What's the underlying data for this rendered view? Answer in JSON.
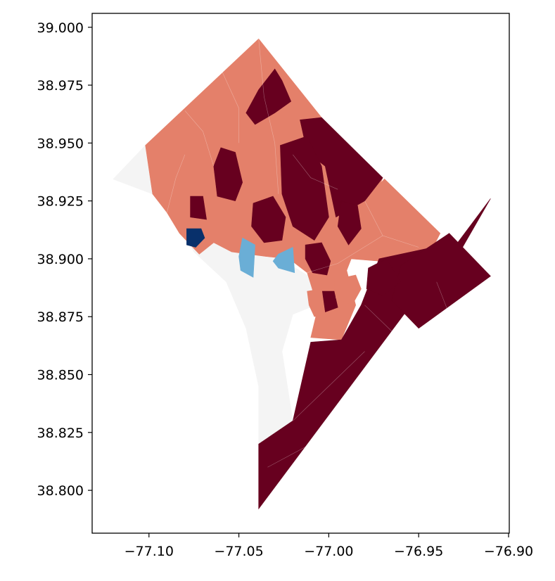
{
  "map": {
    "xaxis": {
      "range": [
        -77.1316,
        -76.8996
      ],
      "ticks": [
        -77.1,
        -77.05,
        -77.0,
        -76.95,
        -76.9
      ],
      "tick_labels": [
        "−77.10",
        "−77.05",
        "−77.00",
        "−76.95",
        "−76.90"
      ]
    },
    "yaxis": {
      "range": [
        38.7815,
        39.006
      ],
      "ticks": [
        38.8,
        38.825,
        38.85,
        38.875,
        38.9,
        38.925,
        38.95,
        38.975,
        39.0
      ],
      "tick_labels": [
        "38.800",
        "38.825",
        "38.850",
        "38.875",
        "38.900",
        "38.925",
        "38.950",
        "38.975",
        "39.000"
      ]
    },
    "colors": {
      "no_data": "#f4f4f4",
      "dark_red": "#67001f",
      "salmon": "#e4806a",
      "light_blue": "#6aaed6",
      "dark_blue": "#08306b",
      "frame": "#000000",
      "background": "#ffffff"
    },
    "regions": [
      {
        "class": "no_data",
        "points": [
          [
            -77.1199,
            38.9344
          ],
          [
            -77.102,
            38.949
          ],
          [
            -77.076,
            38.926
          ],
          [
            -77.068,
            38.913
          ],
          [
            -77.04,
            38.906
          ],
          [
            -77.027,
            38.9
          ],
          [
            -77.01,
            38.892
          ],
          [
            -77.004,
            38.881
          ],
          [
            -77.02,
            38.876
          ],
          [
            -77.026,
            38.86
          ],
          [
            -77.02,
            38.83
          ],
          [
            -77.039,
            38.82
          ],
          [
            -77.039,
            38.845
          ],
          [
            -77.046,
            38.87
          ],
          [
            -77.057,
            38.89
          ],
          [
            -77.075,
            38.903
          ],
          [
            -77.086,
            38.918
          ],
          [
            -77.098,
            38.928
          ]
        ]
      },
      {
        "class": "salmon",
        "points": [
          [
            -77.102,
            38.949
          ],
          [
            -77.039,
            38.995
          ],
          [
            -77.004,
            38.961
          ],
          [
            -76.996,
            38.918
          ],
          [
            -76.97,
            38.935
          ],
          [
            -76.99,
            38.895
          ],
          [
            -76.985,
            38.88
          ],
          [
            -76.993,
            38.865
          ],
          [
            -77.01,
            38.866
          ],
          [
            -77.006,
            38.879
          ],
          [
            -77.012,
            38.894
          ],
          [
            -77.022,
            38.9
          ],
          [
            -77.035,
            38.901
          ],
          [
            -77.054,
            38.903
          ],
          [
            -77.064,
            38.907
          ],
          [
            -77.072,
            38.902
          ],
          [
            -77.083,
            38.911
          ],
          [
            -77.09,
            38.92
          ],
          [
            -77.098,
            38.928
          ]
        ]
      },
      {
        "class": "salmon",
        "points": [
          [
            -76.988,
            38.919
          ],
          [
            -76.969,
            38.9345
          ],
          [
            -76.938,
            38.911
          ],
          [
            -76.942,
            38.905
          ],
          [
            -76.972,
            38.899
          ],
          [
            -76.988,
            38.9
          ]
        ]
      },
      {
        "class": "dark_red",
        "points": [
          [
            -77.039,
            38.792
          ],
          [
            -76.91,
            38.926
          ],
          [
            -76.93,
            38.899
          ],
          [
            -76.942,
            38.905
          ],
          [
            -76.972,
            38.9
          ],
          [
            -76.982,
            38.88
          ],
          [
            -76.993,
            38.865
          ],
          [
            -77.01,
            38.864
          ],
          [
            -77.02,
            38.83
          ],
          [
            -77.039,
            38.82
          ]
        ]
      },
      {
        "class": "dark_red",
        "points": [
          [
            -76.91,
            38.8925
          ],
          [
            -76.933,
            38.911
          ],
          [
            -76.96,
            38.897
          ],
          [
            -76.965,
            38.882
          ],
          [
            -76.95,
            38.87
          ]
        ]
      },
      {
        "class": "dark_red",
        "points": [
          [
            -77.004,
            38.961
          ],
          [
            -76.97,
            38.935
          ],
          [
            -76.98,
            38.925
          ],
          [
            -76.996,
            38.918
          ],
          [
            -77.002,
            38.94
          ],
          [
            -77.012,
            38.946
          ],
          [
            -77.016,
            38.96
          ]
        ]
      },
      {
        "class": "dark_red",
        "points": [
          [
            -77.03,
            38.982
          ],
          [
            -77.026,
            38.977
          ],
          [
            -77.021,
            38.968
          ],
          [
            -77.03,
            38.963
          ],
          [
            -77.041,
            38.958
          ],
          [
            -77.046,
            38.963
          ],
          [
            -77.039,
            38.973
          ]
        ]
      },
      {
        "class": "dark_red",
        "points": [
          [
            -77.06,
            38.948
          ],
          [
            -77.052,
            38.946
          ],
          [
            -77.048,
            38.933
          ],
          [
            -77.052,
            38.925
          ],
          [
            -77.062,
            38.927
          ],
          [
            -77.064,
            38.94
          ]
        ]
      },
      {
        "class": "dark_red",
        "points": [
          [
            -77.027,
            38.949
          ],
          [
            -77.012,
            38.953
          ],
          [
            -77.004,
            38.94
          ],
          [
            -77.0,
            38.918
          ],
          [
            -77.008,
            38.908
          ],
          [
            -77.02,
            38.914
          ],
          [
            -77.026,
            38.928
          ]
        ]
      },
      {
        "class": "dark_red",
        "points": [
          [
            -77.042,
            38.924
          ],
          [
            -77.031,
            38.927
          ],
          [
            -77.024,
            38.918
          ],
          [
            -77.026,
            38.908
          ],
          [
            -77.036,
            38.907
          ],
          [
            -77.043,
            38.914
          ]
        ]
      },
      {
        "class": "dark_red",
        "points": [
          [
            -77.013,
            38.906
          ],
          [
            -77.004,
            38.907
          ],
          [
            -76.999,
            38.899
          ],
          [
            -77.001,
            38.893
          ],
          [
            -77.009,
            38.894
          ],
          [
            -77.013,
            38.9
          ]
        ]
      },
      {
        "class": "dark_red",
        "points": [
          [
            -76.993,
            38.925
          ],
          [
            -76.984,
            38.923
          ],
          [
            -76.982,
            38.913
          ],
          [
            -76.989,
            38.906
          ],
          [
            -76.995,
            38.914
          ]
        ]
      },
      {
        "class": "dark_red",
        "points": [
          [
            -77.077,
            38.927
          ],
          [
            -77.07,
            38.927
          ],
          [
            -77.068,
            38.917
          ],
          [
            -77.077,
            38.918
          ]
        ]
      },
      {
        "class": "dark_red",
        "points": [
          [
            -76.968,
            38.9
          ],
          [
            -76.96,
            38.89
          ],
          [
            -76.97,
            38.884
          ],
          [
            -76.979,
            38.887
          ],
          [
            -76.978,
            38.896
          ]
        ]
      },
      {
        "class": "dark_red",
        "points": [
          [
            -77.004,
            38.886
          ],
          [
            -76.997,
            38.886
          ],
          [
            -76.995,
            38.879
          ],
          [
            -77.002,
            38.877
          ]
        ]
      },
      {
        "class": "salmon",
        "points": [
          [
            -76.997,
            38.891
          ],
          [
            -76.985,
            38.893
          ],
          [
            -76.982,
            38.887
          ],
          [
            -76.987,
            38.88
          ],
          [
            -76.996,
            38.883
          ]
        ]
      },
      {
        "class": "salmon",
        "points": [
          [
            -77.012,
            38.886
          ],
          [
            -77.004,
            38.887
          ],
          [
            -77.002,
            38.876
          ],
          [
            -77.008,
            38.875
          ],
          [
            -77.011,
            38.88
          ]
        ]
      },
      {
        "class": "dark_blue",
        "points": [
          [
            -77.079,
            38.913
          ],
          [
            -77.071,
            38.913
          ],
          [
            -77.069,
            38.909
          ],
          [
            -77.074,
            38.905
          ],
          [
            -77.079,
            38.906
          ]
        ]
      },
      {
        "class": "light_blue",
        "points": [
          [
            -77.048,
            38.909
          ],
          [
            -77.041,
            38.906
          ],
          [
            -77.042,
            38.892
          ],
          [
            -77.049,
            38.895
          ],
          [
            -77.05,
            38.901
          ]
        ]
      },
      {
        "class": "light_blue",
        "points": [
          [
            -77.028,
            38.902
          ],
          [
            -77.02,
            38.905
          ],
          [
            -77.019,
            38.894
          ],
          [
            -77.028,
            38.896
          ],
          [
            -77.031,
            38.899
          ]
        ]
      }
    ],
    "boundaries": [
      [
        [
          -77.06,
          38.982
        ],
        [
          -77.05,
          38.965
        ],
        [
          -77.05,
          38.95
        ]
      ],
      [
        [
          -77.039,
          38.995
        ],
        [
          -77.036,
          38.97
        ],
        [
          -77.03,
          38.95
        ],
        [
          -77.028,
          38.928
        ]
      ],
      [
        [
          -77.08,
          38.964
        ],
        [
          -77.07,
          38.955
        ],
        [
          -77.064,
          38.94
        ]
      ],
      [
        [
          -77.02,
          38.945
        ],
        [
          -77.01,
          38.935
        ],
        [
          -76.995,
          38.93
        ]
      ],
      [
        [
          -77.012,
          38.894
        ],
        [
          -76.995,
          38.898
        ],
        [
          -76.97,
          38.91
        ]
      ],
      [
        [
          -76.98,
          38.88
        ],
        [
          -76.96,
          38.865
        ],
        [
          -76.94,
          38.85
        ]
      ],
      [
        [
          -77.02,
          38.83
        ],
        [
          -77.0,
          38.845
        ],
        [
          -76.98,
          38.86
        ]
      ],
      [
        [
          -76.94,
          38.89
        ],
        [
          -76.93,
          38.87
        ],
        [
          -76.92,
          38.86
        ]
      ],
      [
        [
          -77.034,
          38.81
        ],
        [
          -77.01,
          38.82
        ],
        [
          -76.99,
          38.83
        ]
      ],
      [
        [
          -76.98,
          38.925
        ],
        [
          -76.97,
          38.91
        ],
        [
          -76.95,
          38.905
        ]
      ],
      [
        [
          -77.09,
          38.92
        ],
        [
          -77.085,
          38.935
        ],
        [
          -77.08,
          38.945
        ]
      ]
    ]
  }
}
